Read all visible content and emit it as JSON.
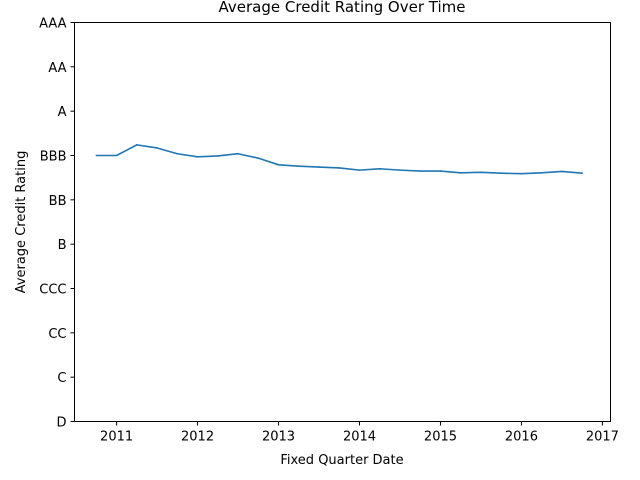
{
  "chart_data": {
    "type": "line",
    "title": "Average Credit Rating Over Time",
    "xlabel": "Fixed Quarter Date",
    "ylabel": "Average Credit Rating",
    "y_ticks": [
      {
        "value": 0,
        "label": "D"
      },
      {
        "value": 1,
        "label": "C"
      },
      {
        "value": 2,
        "label": "CC"
      },
      {
        "value": 3,
        "label": "CCC"
      },
      {
        "value": 4,
        "label": "B"
      },
      {
        "value": 5,
        "label": "BB"
      },
      {
        "value": 6,
        "label": "BBB"
      },
      {
        "value": 7,
        "label": "A"
      },
      {
        "value": 8,
        "label": "AA"
      },
      {
        "value": 9,
        "label": "AAA"
      }
    ],
    "x_ticks": [
      {
        "value": 2011,
        "label": "2011"
      },
      {
        "value": 2012,
        "label": "2012"
      },
      {
        "value": 2013,
        "label": "2013"
      },
      {
        "value": 2014,
        "label": "2014"
      },
      {
        "value": 2015,
        "label": "2015"
      },
      {
        "value": 2016,
        "label": "2016"
      },
      {
        "value": 2017,
        "label": "2017"
      }
    ],
    "xlim": [
      2010.48,
      2017.1
    ],
    "ylim": [
      0,
      9
    ],
    "grid": false,
    "series": [
      {
        "color": "#1f77b4",
        "x": [
          2010.75,
          2011.0,
          2011.25,
          2011.5,
          2011.75,
          2012.0,
          2012.25,
          2012.5,
          2012.75,
          2013.0,
          2013.25,
          2013.5,
          2013.75,
          2014.0,
          2014.25,
          2014.5,
          2014.75,
          2015.0,
          2015.25,
          2015.5,
          2015.75,
          2016.0,
          2016.25,
          2016.5,
          2016.75
        ],
        "y": [
          6.0,
          6.0,
          6.24,
          6.17,
          6.04,
          5.97,
          5.99,
          6.04,
          5.94,
          5.79,
          5.76,
          5.74,
          5.72,
          5.67,
          5.7,
          5.67,
          5.65,
          5.65,
          5.61,
          5.62,
          5.6,
          5.59,
          5.61,
          5.64,
          5.6
        ]
      }
    ]
  }
}
